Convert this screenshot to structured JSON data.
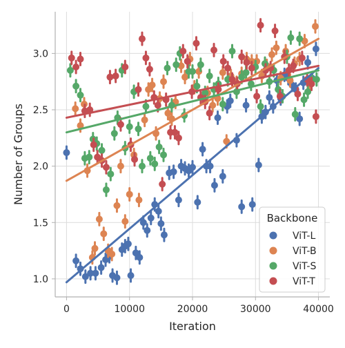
{
  "chart_data": {
    "type": "scatter",
    "xlabel": "Iteration",
    "ylabel": "Number of Groups",
    "xlim": [
      -1800,
      41800
    ],
    "ylim": [
      0.84,
      3.37
    ],
    "xticks": [
      0,
      10000,
      20000,
      30000,
      40000
    ],
    "yticks": [
      1.0,
      1.5,
      2.0,
      2.5,
      3.0
    ],
    "grid": true,
    "legend": {
      "title": "Backbone",
      "placement": "lower-right"
    },
    "series": [
      {
        "name": "ViT-L",
        "color": "#4c72b0",
        "fit": {
          "x": [
            0,
            40000
          ],
          "y": [
            0.97,
            2.87
          ]
        },
        "points": [
          [
            0,
            2.12
          ],
          [
            1500,
            1.16
          ],
          [
            2200,
            1.09
          ],
          [
            3000,
            1.02
          ],
          [
            3800,
            1.05
          ],
          [
            4600,
            1.05
          ],
          [
            5500,
            1.1
          ],
          [
            6200,
            1.17
          ],
          [
            6800,
            1.2
          ],
          [
            7300,
            1.03
          ],
          [
            8000,
            1.01
          ],
          [
            8800,
            1.26
          ],
          [
            9300,
            1.29
          ],
          [
            9800,
            1.31
          ],
          [
            10200,
            1.03
          ],
          [
            11000,
            1.23
          ],
          [
            11600,
            1.19
          ],
          [
            12200,
            1.5
          ],
          [
            12800,
            1.43
          ],
          [
            13400,
            1.54
          ],
          [
            14000,
            1.66
          ],
          [
            14600,
            1.6
          ],
          [
            15000,
            1.49
          ],
          [
            15500,
            1.39
          ],
          [
            16300,
            1.94
          ],
          [
            17000,
            1.95
          ],
          [
            17800,
            1.7
          ],
          [
            18200,
            2.0
          ],
          [
            18800,
            1.98
          ],
          [
            19400,
            1.96
          ],
          [
            20000,
            1.99
          ],
          [
            20800,
            1.68
          ],
          [
            21600,
            2.15
          ],
          [
            22200,
            2.0
          ],
          [
            22800,
            2.0
          ],
          [
            23500,
            1.83
          ],
          [
            24000,
            2.43
          ],
          [
            24800,
            1.91
          ],
          [
            25500,
            2.53
          ],
          [
            26000,
            2.58
          ],
          [
            27000,
            2.23
          ],
          [
            27800,
            1.64
          ],
          [
            28500,
            2.54
          ],
          [
            29500,
            1.66
          ],
          [
            30500,
            2.01
          ],
          [
            31000,
            2.44
          ],
          [
            31600,
            2.48
          ],
          [
            32200,
            2.61
          ],
          [
            32800,
            2.53
          ],
          [
            33400,
            2.76
          ],
          [
            34000,
            2.6
          ],
          [
            34600,
            2.81
          ],
          [
            35200,
            2.78
          ],
          [
            35800,
            2.72
          ],
          [
            36400,
            2.68
          ],
          [
            37000,
            2.42
          ],
          [
            37600,
            2.74
          ],
          [
            38300,
            2.92
          ],
          [
            39000,
            2.78
          ],
          [
            39600,
            3.04
          ]
        ]
      },
      {
        "name": "ViT-B",
        "color": "#dd8452",
        "fit": {
          "x": [
            0,
            40000
          ],
          "y": [
            1.87,
            3.13
          ]
        },
        "points": [
          [
            1400,
            2.51
          ],
          [
            2200,
            2.36
          ],
          [
            2800,
            2.55
          ],
          [
            3300,
            1.96
          ],
          [
            4100,
            1.19
          ],
          [
            4500,
            1.27
          ],
          [
            5200,
            1.53
          ],
          [
            5900,
            1.4
          ],
          [
            6600,
            1.25
          ],
          [
            7200,
            1.22
          ],
          [
            8000,
            1.65
          ],
          [
            8600,
            2.0
          ],
          [
            9300,
            1.51
          ],
          [
            10000,
            1.75
          ],
          [
            10700,
            2.1
          ],
          [
            11500,
            1.7
          ],
          [
            12400,
            2.41
          ],
          [
            13000,
            2.68
          ],
          [
            13600,
            2.72
          ],
          [
            14200,
            2.29
          ],
          [
            14800,
            2.6
          ],
          [
            15400,
            2.75
          ],
          [
            16100,
            2.47
          ],
          [
            16700,
            2.42
          ],
          [
            17300,
            2.57
          ],
          [
            18200,
            2.89
          ],
          [
            18800,
            2.79
          ],
          [
            19600,
            2.95
          ],
          [
            20300,
            2.7
          ],
          [
            21000,
            2.84
          ],
          [
            21700,
            2.61
          ],
          [
            22400,
            2.65
          ],
          [
            23200,
            2.54
          ],
          [
            24000,
            2.6
          ],
          [
            24800,
            2.83
          ],
          [
            25400,
            2.22
          ],
          [
            26100,
            2.8
          ],
          [
            27000,
            2.74
          ],
          [
            27800,
            2.82
          ],
          [
            28600,
            2.95
          ],
          [
            29400,
            2.93
          ],
          [
            30200,
            2.93
          ],
          [
            31000,
            2.8
          ],
          [
            31800,
            2.89
          ],
          [
            32600,
            2.99
          ],
          [
            33300,
            3.05
          ],
          [
            34000,
            2.78
          ],
          [
            34800,
            3.02
          ],
          [
            35500,
            2.76
          ],
          [
            36200,
            2.91
          ],
          [
            37000,
            2.95
          ],
          [
            37800,
            3.11
          ],
          [
            38600,
            2.73
          ],
          [
            39500,
            3.24
          ]
        ]
      },
      {
        "name": "ViT-S",
        "color": "#55a868",
        "fit": {
          "x": [
            0,
            40000
          ],
          "y": [
            2.3,
            2.85
          ]
        },
        "points": [
          [
            600,
            2.85
          ],
          [
            1500,
            2.71
          ],
          [
            2200,
            2.63
          ],
          [
            2900,
            2.07
          ],
          [
            3600,
            2.08
          ],
          [
            4200,
            2.24
          ],
          [
            4800,
            2.2
          ],
          [
            5600,
            2.14
          ],
          [
            6300,
            1.79
          ],
          [
            7000,
            1.93
          ],
          [
            7600,
            2.29
          ],
          [
            8100,
            2.43
          ],
          [
            8800,
            2.85
          ],
          [
            9300,
            2.16
          ],
          [
            10000,
            2.35
          ],
          [
            10700,
            2.66
          ],
          [
            11400,
            2.33
          ],
          [
            12000,
            2.0
          ],
          [
            12600,
            2.53
          ],
          [
            13300,
            2.07
          ],
          [
            14000,
            2.02
          ],
          [
            14700,
            2.17
          ],
          [
            15400,
            2.1
          ],
          [
            16000,
            2.87
          ],
          [
            16700,
            2.54
          ],
          [
            17400,
            2.9
          ],
          [
            18000,
            3.0
          ],
          [
            18700,
            2.45
          ],
          [
            19400,
            2.84
          ],
          [
            20000,
            2.84
          ],
          [
            20700,
            2.71
          ],
          [
            21300,
            2.9
          ],
          [
            22000,
            2.65
          ],
          [
            22700,
            2.8
          ],
          [
            23400,
            2.68
          ],
          [
            24100,
            2.73
          ],
          [
            24800,
            2.55
          ],
          [
            25600,
            2.77
          ],
          [
            26300,
            3.02
          ],
          [
            27000,
            2.66
          ],
          [
            27800,
            2.79
          ],
          [
            28500,
            2.83
          ],
          [
            29300,
            2.73
          ],
          [
            30000,
            2.88
          ],
          [
            30800,
            2.53
          ],
          [
            31500,
            2.91
          ],
          [
            32200,
            2.75
          ],
          [
            32900,
            2.85
          ],
          [
            33600,
            2.68
          ],
          [
            34300,
            2.62
          ],
          [
            35000,
            2.97
          ],
          [
            35600,
            3.14
          ],
          [
            36300,
            2.46
          ],
          [
            37000,
            3.13
          ],
          [
            37700,
            2.59
          ],
          [
            38300,
            2.66
          ],
          [
            39000,
            2.77
          ],
          [
            39700,
            2.77
          ]
        ]
      },
      {
        "name": "ViT-T",
        "color": "#c44e52",
        "fit": {
          "x": [
            0,
            40000
          ],
          "y": [
            2.43,
            2.89
          ]
        },
        "points": [
          [
            800,
            2.96
          ],
          [
            1500,
            2.88
          ],
          [
            2200,
            2.95
          ],
          [
            2900,
            2.49
          ],
          [
            3700,
            2.5
          ],
          [
            4300,
            2.19
          ],
          [
            4900,
            2.08
          ],
          [
            5600,
            2.05
          ],
          [
            6300,
            1.99
          ],
          [
            6900,
            2.79
          ],
          [
            7800,
            2.8
          ],
          [
            8600,
            2.37
          ],
          [
            9300,
            2.88
          ],
          [
            10200,
            2.19
          ],
          [
            10800,
            2.06
          ],
          [
            11400,
            2.68
          ],
          [
            12000,
            3.13
          ],
          [
            12600,
            2.96
          ],
          [
            13200,
            2.86
          ],
          [
            13900,
            2.61
          ],
          [
            14500,
            2.54
          ],
          [
            15200,
            1.84
          ],
          [
            15800,
            2.59
          ],
          [
            16500,
            2.3
          ],
          [
            17200,
            2.3
          ],
          [
            17800,
            2.25
          ],
          [
            18500,
            3.02
          ],
          [
            19200,
            2.93
          ],
          [
            19900,
            2.66
          ],
          [
            20600,
            3.09
          ],
          [
            21300,
            2.61
          ],
          [
            22000,
            2.57
          ],
          [
            22700,
            2.47
          ],
          [
            23400,
            3.03
          ],
          [
            24100,
            2.68
          ],
          [
            24900,
            2.93
          ],
          [
            25600,
            2.87
          ],
          [
            26300,
            2.77
          ],
          [
            27100,
            2.73
          ],
          [
            27800,
            2.97
          ],
          [
            28600,
            2.92
          ],
          [
            29400,
            2.87
          ],
          [
            30200,
            2.62
          ],
          [
            30800,
            3.25
          ],
          [
            31600,
            2.85
          ],
          [
            32400,
            2.87
          ],
          [
            33100,
            3.2
          ],
          [
            33900,
            2.62
          ],
          [
            34600,
            2.97
          ],
          [
            35300,
            2.85
          ],
          [
            36000,
            2.89
          ],
          [
            36700,
            2.64
          ],
          [
            37400,
            2.96
          ],
          [
            38200,
            2.77
          ],
          [
            38900,
            2.73
          ],
          [
            39600,
            2.44
          ]
        ]
      }
    ]
  }
}
